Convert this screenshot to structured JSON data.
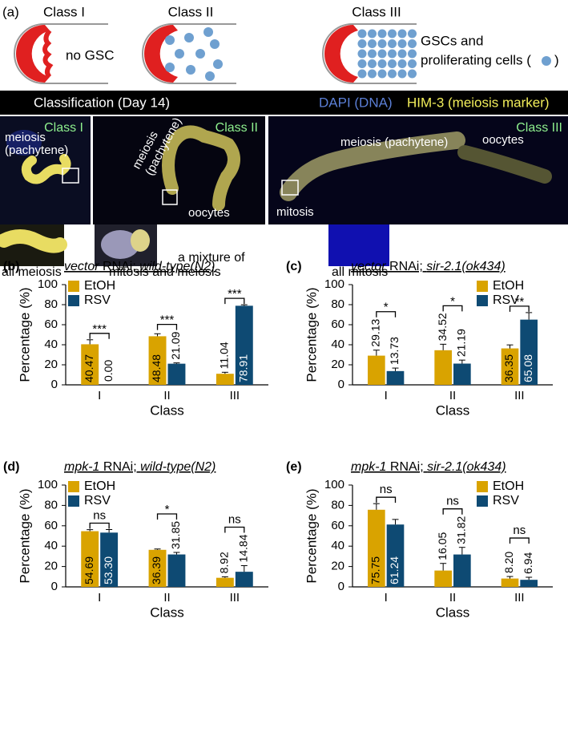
{
  "panel_a": {
    "label": "(a)",
    "diagram": {
      "classes": [
        "Class I",
        "Class II",
        "Class III"
      ],
      "no_gsc": "no GSC",
      "gsc_text": [
        "GSCs and",
        "proliferating cells ("
      ],
      "gsc_close": ")"
    },
    "banner": {
      "title": "Classification (Day 14)",
      "dapi": "DAPI (DNA)",
      "him3": "HIM-3 (meiosis marker)"
    },
    "images": [
      {
        "class": "Class I",
        "labels": [
          "meiosis",
          "(pachytene)"
        ],
        "caption": [
          "all meiosis"
        ]
      },
      {
        "class": "Class II",
        "labels": [
          "meiosis",
          "(pachytene)",
          "oocytes"
        ],
        "caption": [
          "a mixture of",
          "mitosis and meiosis"
        ]
      },
      {
        "class": "Class III",
        "labels": [
          "meiosis (pachytene)",
          "oocytes",
          "mitosis"
        ],
        "caption": [
          "all mitosis"
        ]
      }
    ]
  },
  "chart_data": [
    {
      "type": "bar",
      "panel": "(b)",
      "title": [
        "vector",
        " RNAi; ",
        "wild-type(N2)"
      ],
      "title_italic": [
        true,
        false,
        true
      ],
      "categories": [
        "I",
        "II",
        "III"
      ],
      "x_label": "Class",
      "y_label": "Percentage (%)",
      "ylim": [
        0,
        100
      ],
      "yticks": [
        0,
        20,
        40,
        60,
        80,
        100
      ],
      "legend": "upper left",
      "series": [
        {
          "name": "EtOH",
          "color": "#d9a300",
          "values": [
            40.47,
            48.48,
            11.04
          ],
          "value_labels": [
            "40.47",
            "48.48",
            "11.04"
          ],
          "errors": [
            4.5,
            2.5,
            1.5
          ]
        },
        {
          "name": "RSV",
          "color": "#0e4a73",
          "values": [
            0,
            21.09,
            78.91
          ],
          "value_labels": [
            "0.00",
            "21.09",
            "78.91"
          ],
          "errors": [
            0,
            0.8,
            1
          ]
        }
      ],
      "significance": [
        "***",
        "***",
        "***"
      ]
    },
    {
      "type": "bar",
      "panel": "(c)",
      "title": [
        "vector",
        " RNAi; ",
        "sir-2.1(ok434)"
      ],
      "title_italic": [
        true,
        false,
        true
      ],
      "categories": [
        "I",
        "II",
        "III"
      ],
      "x_label": "Class",
      "y_label": "Percentage (%)",
      "ylim": [
        0,
        100
      ],
      "yticks": [
        0,
        20,
        40,
        60,
        80,
        100
      ],
      "legend": "upper right",
      "series": [
        {
          "name": "EtOH",
          "color": "#d9a300",
          "values": [
            29.13,
            34.52,
            36.35
          ],
          "value_labels": [
            "29.13",
            "34.52",
            "36.35"
          ],
          "errors": [
            5.5,
            6,
            3.5
          ]
        },
        {
          "name": "RSV",
          "color": "#0e4a73",
          "values": [
            13.73,
            21.19,
            65.08
          ],
          "value_labels": [
            "13.73",
            "21.19",
            "65.08"
          ],
          "errors": [
            3,
            3.5,
            7
          ]
        }
      ],
      "significance": [
        "*",
        "*",
        "**"
      ]
    },
    {
      "type": "bar",
      "panel": "(d)",
      "title": [
        "mpk-1",
        " RNAi; ",
        "wild-type(N2)"
      ],
      "title_italic": [
        true,
        false,
        true
      ],
      "categories": [
        "I",
        "II",
        "III"
      ],
      "x_label": "Class",
      "y_label": "Percentage (%)",
      "ylim": [
        0,
        100
      ],
      "yticks": [
        0,
        20,
        40,
        60,
        80,
        100
      ],
      "legend": "upper left",
      "series": [
        {
          "name": "EtOH",
          "color": "#d9a300",
          "values": [
            54.69,
            36.39,
            8.92
          ],
          "value_labels": [
            "54.69",
            "36.39",
            "8.92"
          ],
          "errors": [
            1.5,
            0.8,
            1
          ]
        },
        {
          "name": "RSV",
          "color": "#0e4a73",
          "values": [
            53.3,
            31.85,
            14.84
          ],
          "value_labels": [
            "53.30",
            "31.85",
            "14.84"
          ],
          "errors": [
            3,
            2,
            6
          ]
        }
      ],
      "significance": [
        "ns",
        "*",
        "ns"
      ]
    },
    {
      "type": "bar",
      "panel": "(e)",
      "title": [
        "mpk-1",
        " RNAi; ",
        "sir-2.1(ok434)"
      ],
      "title_italic": [
        true,
        false,
        true
      ],
      "categories": [
        "I",
        "II",
        "III"
      ],
      "x_label": "Class",
      "y_label": "Percentage (%)",
      "ylim": [
        0,
        100
      ],
      "yticks": [
        0,
        20,
        40,
        60,
        80,
        100
      ],
      "legend": "upper right",
      "series": [
        {
          "name": "EtOH",
          "color": "#d9a300",
          "values": [
            75.75,
            16.05,
            8.2
          ],
          "value_labels": [
            "75.75",
            "16.05",
            "8.20"
          ],
          "errors": [
            6,
            7,
            2
          ]
        },
        {
          "name": "RSV",
          "color": "#0e4a73",
          "values": [
            61.24,
            31.82,
            6.94
          ],
          "value_labels": [
            "61.24",
            "31.82",
            "6.94"
          ],
          "errors": [
            5,
            7,
            2.5
          ]
        }
      ],
      "significance": [
        "ns",
        "ns",
        "ns"
      ]
    }
  ]
}
